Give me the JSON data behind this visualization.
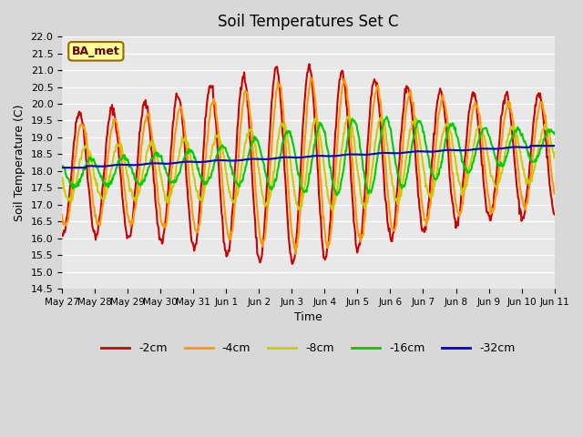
{
  "title": "Soil Temperatures Set C",
  "xlabel": "Time",
  "ylabel": "Soil Temperature (C)",
  "ylim": [
    14.5,
    22.0
  ],
  "yticks": [
    14.5,
    15.0,
    15.5,
    16.0,
    16.5,
    17.0,
    17.5,
    18.0,
    18.5,
    19.0,
    19.5,
    20.0,
    20.5,
    21.0,
    21.5,
    22.0
  ],
  "fig_facecolor": "#d8d8d8",
  "ax_facecolor": "#e8e8e8",
  "series": [
    {
      "label": "-2cm",
      "color": "#cc0000",
      "lw": 1.5
    },
    {
      "label": "-4cm",
      "color": "#ff9900",
      "lw": 1.5
    },
    {
      "label": "-8cm",
      "color": "#cccc00",
      "lw": 1.5
    },
    {
      "label": "-16cm",
      "color": "#00cc00",
      "lw": 1.5
    },
    {
      "label": "-32cm",
      "color": "#0000cc",
      "lw": 1.5
    }
  ],
  "legend_label": "BA_met",
  "xtick_labels": [
    "May 27",
    "May 28",
    "May 29",
    "May 30",
    "May 31",
    "Jun 1",
    "Jun 2",
    "Jun 3",
    "Jun 4",
    "Jun 5",
    "Jun 6",
    "Jun 7",
    "Jun 8",
    "Jun 9",
    "Jun 10",
    "Jun 11"
  ],
  "n_points_per_day": 48,
  "n_days": 15
}
